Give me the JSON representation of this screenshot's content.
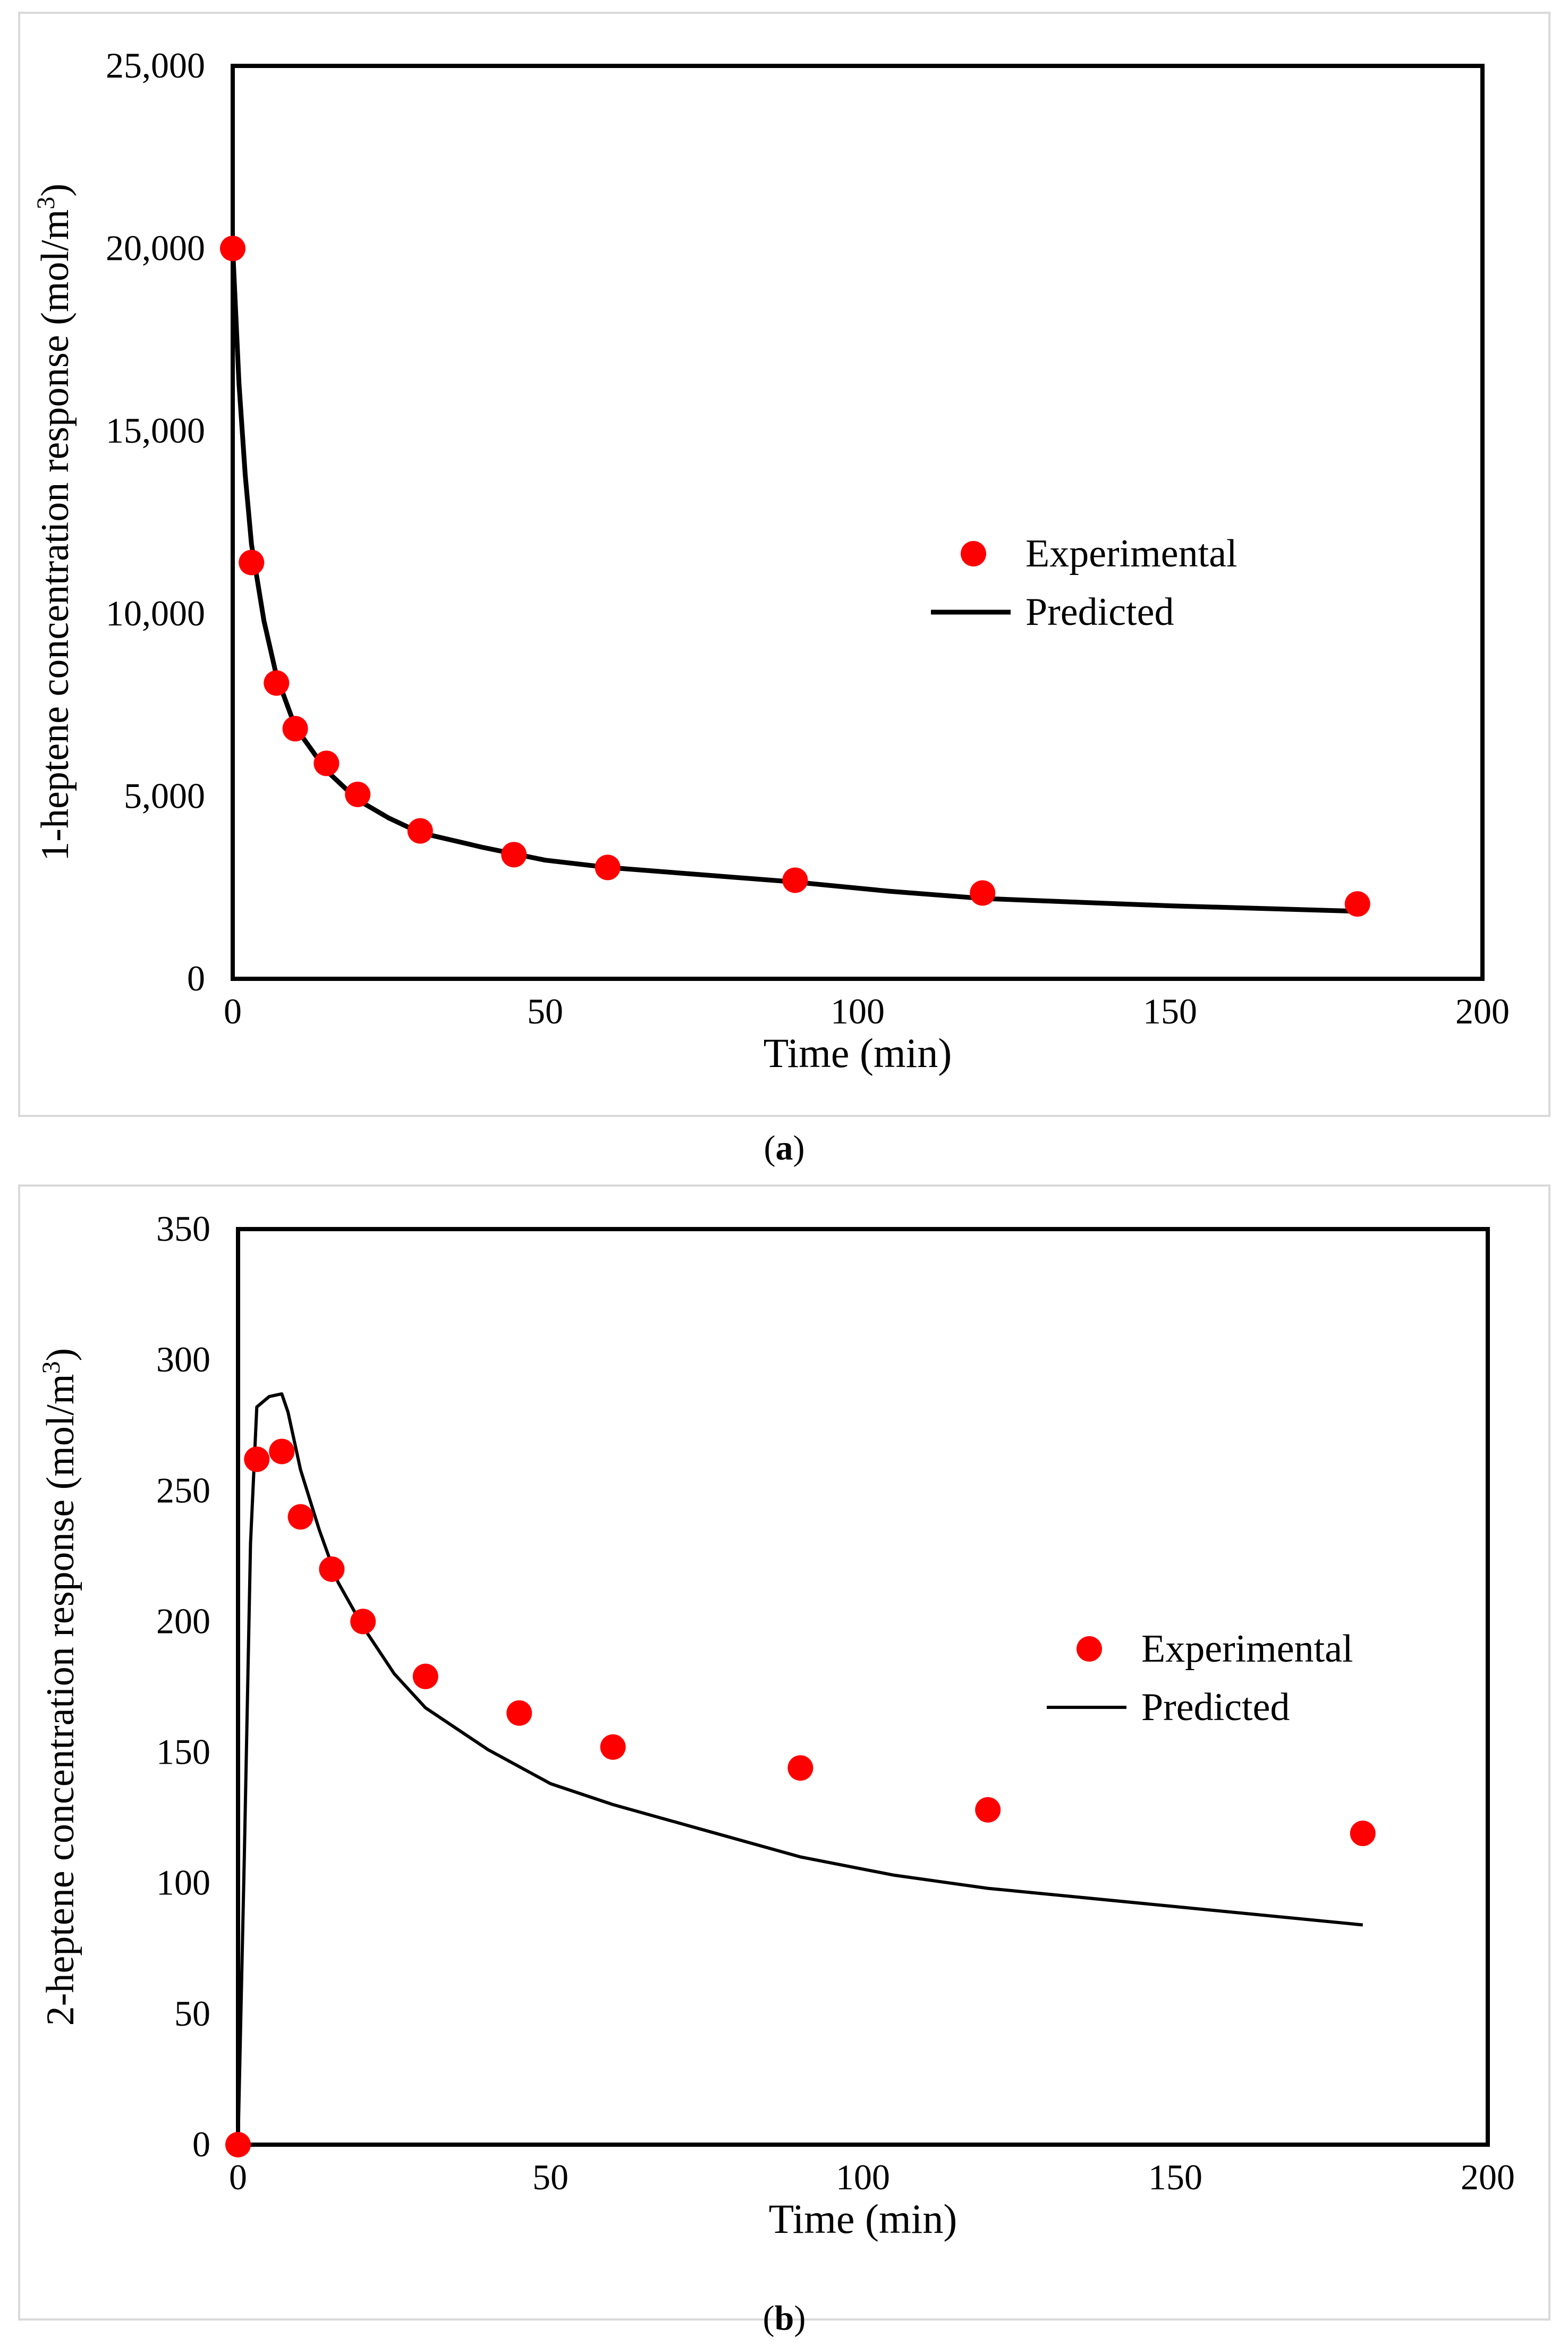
{
  "chart_data": [
    {
      "type": "scatter+line",
      "panel_label": "a",
      "title": "",
      "xlabel": "Time (min)",
      "ylabel": "1-heptene concentration response (mol/m",
      "ylabel_sup": "3",
      "ylabel_end": ")",
      "xlim": [
        0,
        200
      ],
      "ylim": [
        0,
        25000
      ],
      "xticks": [
        0,
        50,
        100,
        150,
        200
      ],
      "yticks": [
        0,
        5000,
        10000,
        15000,
        20000,
        25000
      ],
      "ytick_labels": [
        "0",
        "5,000",
        "10,000",
        "15,000",
        "20,000",
        "25,000"
      ],
      "legend": {
        "placement": "right-middle",
        "entries": [
          "Experimental",
          "Predicted"
        ]
      },
      "series": [
        {
          "name": "Experimental",
          "kind": "scatter",
          "color": "#ff0000",
          "x": [
            0,
            3,
            7,
            10,
            15,
            20,
            30,
            45,
            60,
            90,
            120,
            180
          ],
          "y": [
            20000,
            11400,
            8100,
            6850,
            5900,
            5050,
            4050,
            3400,
            3050,
            2700,
            2350,
            2050
          ]
        },
        {
          "name": "Predicted",
          "kind": "line",
          "color": "#000000",
          "x": [
            0,
            1,
            2,
            3,
            5,
            7,
            10,
            15,
            20,
            25,
            30,
            40,
            50,
            60,
            75,
            90,
            105,
            120,
            150,
            180
          ],
          "y": [
            20000,
            16300,
            13800,
            11900,
            9800,
            8300,
            6900,
            5700,
            4900,
            4400,
            4000,
            3600,
            3250,
            3050,
            2850,
            2650,
            2400,
            2200,
            2000,
            1850
          ]
        }
      ]
    },
    {
      "type": "scatter+line",
      "panel_label": "b",
      "title": "",
      "xlabel": "Time (min)",
      "ylabel": "2-heptene concentration response (mol/m",
      "ylabel_sup": "3",
      "ylabel_end": ")",
      "xlim": [
        0,
        200
      ],
      "ylim": [
        0,
        350
      ],
      "xticks": [
        0,
        50,
        100,
        150,
        200
      ],
      "yticks": [
        0,
        50,
        100,
        150,
        200,
        250,
        300,
        350
      ],
      "ytick_labels": [
        "0",
        "50",
        "100",
        "150",
        "200",
        "250",
        "300",
        "350"
      ],
      "legend": {
        "placement": "right-middle",
        "entries": [
          "Experimental",
          "Predicted"
        ]
      },
      "series": [
        {
          "name": "Experimental",
          "kind": "scatter",
          "color": "#ff0000",
          "x": [
            0,
            3,
            7,
            10,
            15,
            20,
            30,
            45,
            60,
            90,
            120,
            180
          ],
          "y": [
            0,
            262,
            265,
            240,
            220,
            200,
            179,
            165,
            152,
            144,
            128,
            119
          ]
        },
        {
          "name": "Predicted",
          "kind": "line",
          "color": "#000000",
          "x": [
            0,
            1,
            2,
            3,
            5,
            7,
            8,
            10,
            13,
            16,
            20,
            25,
            30,
            40,
            50,
            60,
            75,
            90,
            105,
            120,
            150,
            180
          ],
          "y": [
            0,
            110,
            230,
            282,
            286,
            287,
            280,
            258,
            235,
            215,
            198,
            180,
            167,
            151,
            138,
            130,
            120,
            110,
            103,
            98,
            91,
            84
          ]
        }
      ]
    }
  ]
}
